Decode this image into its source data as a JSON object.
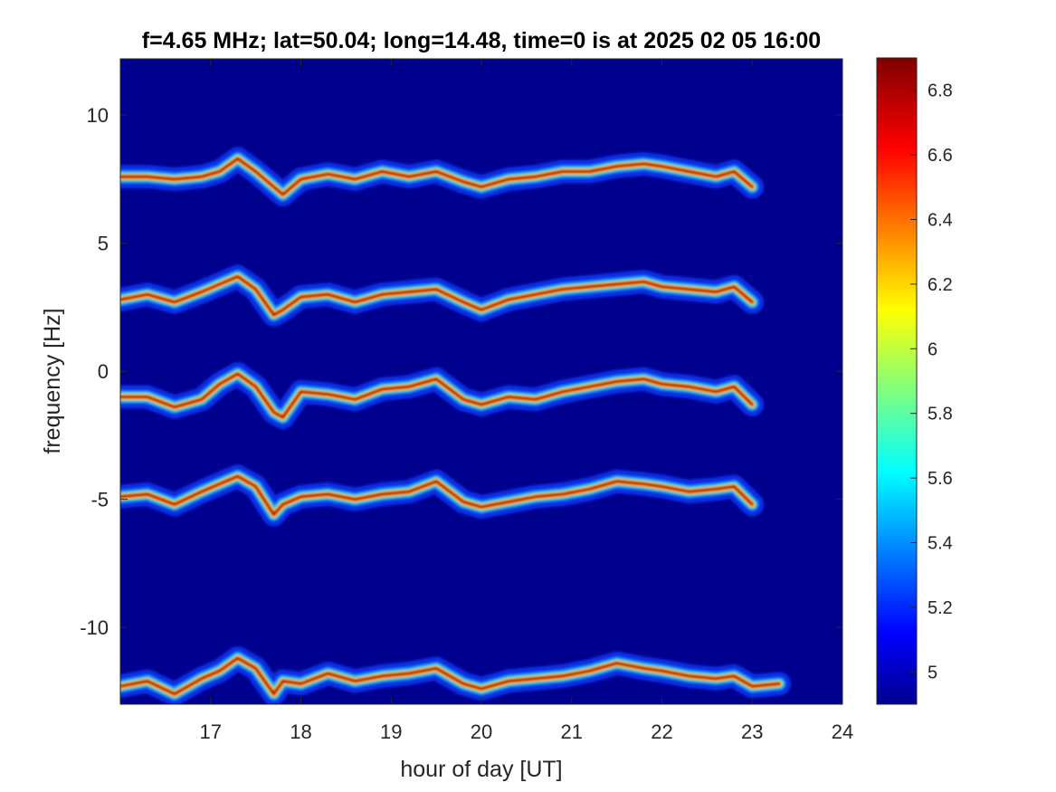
{
  "chart_data": {
    "type": "heatmap",
    "title": "f=4.65 MHz;  lat=50.04; long=14.48, time=0 is at 2025 02 05 16:00",
    "xlabel": "hour of day [UT]",
    "ylabel": "frequency [Hz]",
    "xlim": [
      16,
      24
    ],
    "ylim": [
      -13,
      12.2
    ],
    "x_ticks": [
      17,
      18,
      19,
      20,
      21,
      22,
      23,
      24
    ],
    "x_tick_labels": [
      "17",
      "18",
      "19",
      "20",
      "21",
      "22",
      "23",
      "24"
    ],
    "y_ticks": [
      10,
      5,
      0,
      -5,
      -10
    ],
    "y_tick_labels": [
      "10",
      "5",
      "0",
      "-5",
      "-10"
    ],
    "colormap": "jet",
    "colorbar": {
      "lim": [
        4.9,
        6.9
      ],
      "ticks": [
        6.8,
        6.6,
        6.4,
        6.2,
        6,
        5.8,
        5.6,
        5.4,
        5.2,
        5
      ],
      "tick_labels": [
        "6.8",
        "6.6",
        "6.4",
        "6.2",
        "6",
        "5.8",
        "5.6",
        "5.4",
        "5.2",
        "5"
      ]
    },
    "background_value": 4.95,
    "grid": false,
    "series": [
      {
        "x": [
          16.0,
          16.3,
          16.6,
          16.9,
          17.1,
          17.3,
          17.5,
          17.7,
          17.8,
          18.0,
          18.3,
          18.6,
          18.9,
          19.2,
          19.5,
          19.8,
          20.0,
          20.3,
          20.6,
          20.9,
          21.2,
          21.5,
          21.8,
          22.0,
          22.3,
          22.6,
          22.8,
          23.0
        ],
        "y": [
          7.6,
          7.6,
          7.5,
          7.6,
          7.8,
          8.3,
          7.8,
          7.2,
          6.9,
          7.5,
          7.7,
          7.5,
          7.8,
          7.6,
          7.8,
          7.4,
          7.2,
          7.5,
          7.6,
          7.8,
          7.8,
          8.0,
          8.1,
          8.0,
          7.8,
          7.6,
          7.8,
          7.2
        ]
      },
      {
        "x": [
          16.0,
          16.3,
          16.6,
          16.9,
          17.1,
          17.3,
          17.5,
          17.7,
          17.8,
          18.0,
          18.3,
          18.6,
          18.9,
          19.2,
          19.5,
          19.8,
          20.0,
          20.3,
          20.6,
          20.9,
          21.2,
          21.5,
          21.8,
          22.0,
          22.3,
          22.6,
          22.8,
          23.0
        ],
        "y": [
          2.8,
          3.0,
          2.7,
          3.1,
          3.4,
          3.7,
          3.2,
          2.2,
          2.4,
          2.9,
          3.0,
          2.7,
          3.0,
          3.1,
          3.2,
          2.7,
          2.4,
          2.8,
          3.0,
          3.2,
          3.3,
          3.4,
          3.5,
          3.3,
          3.2,
          3.1,
          3.3,
          2.7
        ]
      },
      {
        "x": [
          16.0,
          16.3,
          16.6,
          16.9,
          17.1,
          17.3,
          17.5,
          17.7,
          17.8,
          18.0,
          18.3,
          18.6,
          18.9,
          19.2,
          19.5,
          19.8,
          20.0,
          20.3,
          20.6,
          20.9,
          21.2,
          21.5,
          21.8,
          22.0,
          22.3,
          22.6,
          22.8,
          23.0
        ],
        "y": [
          -1.0,
          -1.0,
          -1.4,
          -1.1,
          -0.5,
          -0.1,
          -0.6,
          -1.6,
          -1.8,
          -0.8,
          -0.9,
          -1.1,
          -0.7,
          -0.6,
          -0.3,
          -1.1,
          -1.3,
          -1.0,
          -1.1,
          -0.8,
          -0.6,
          -0.4,
          -0.3,
          -0.5,
          -0.6,
          -0.8,
          -0.6,
          -1.3
        ]
      },
      {
        "x": [
          16.0,
          16.3,
          16.6,
          16.9,
          17.1,
          17.3,
          17.5,
          17.7,
          17.8,
          18.0,
          18.3,
          18.6,
          18.9,
          19.2,
          19.5,
          19.8,
          20.0,
          20.3,
          20.6,
          20.9,
          21.2,
          21.5,
          21.8,
          22.0,
          22.3,
          22.6,
          22.8,
          23.0
        ],
        "y": [
          -4.9,
          -4.8,
          -5.2,
          -4.7,
          -4.4,
          -4.1,
          -4.5,
          -5.6,
          -5.2,
          -4.9,
          -4.8,
          -5.0,
          -4.8,
          -4.7,
          -4.3,
          -5.1,
          -5.3,
          -5.1,
          -4.9,
          -4.8,
          -4.6,
          -4.3,
          -4.4,
          -4.5,
          -4.7,
          -4.6,
          -4.5,
          -5.2
        ]
      },
      {
        "x": [
          16.0,
          16.3,
          16.6,
          16.9,
          17.1,
          17.3,
          17.5,
          17.7,
          17.8,
          18.0,
          18.3,
          18.6,
          18.9,
          19.2,
          19.5,
          19.8,
          20.0,
          20.3,
          20.6,
          20.9,
          21.2,
          21.5,
          21.8,
          22.0,
          22.3,
          22.6,
          22.8,
          23.0,
          23.3
        ],
        "y": [
          -12.3,
          -12.1,
          -12.6,
          -12.0,
          -11.7,
          -11.2,
          -11.6,
          -12.6,
          -12.1,
          -12.2,
          -11.8,
          -12.1,
          -11.9,
          -11.8,
          -11.6,
          -12.2,
          -12.4,
          -12.1,
          -12.0,
          -11.9,
          -11.7,
          -11.4,
          -11.6,
          -11.7,
          -11.9,
          -12.0,
          -11.9,
          -12.3,
          -12.2
        ]
      }
    ]
  }
}
